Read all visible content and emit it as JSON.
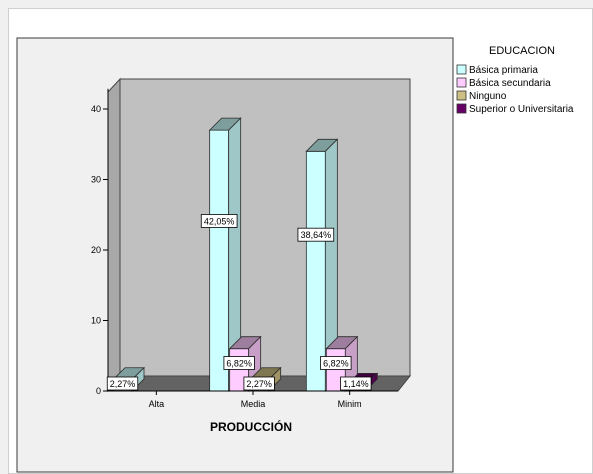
{
  "chart_data": {
    "type": "bar",
    "title": "",
    "xlabel": "PRODUCCIÓN",
    "ylabel": "",
    "ylim": [
      0,
      45
    ],
    "yticks": [
      0,
      10,
      20,
      30,
      40
    ],
    "grid": false,
    "legend_position": "right",
    "legend_title": "EDUCACION",
    "categories": [
      "Alta",
      "Media",
      "Minim"
    ],
    "series": [
      {
        "name": "Básica primaria",
        "color": "#ccffff",
        "values": [
          1.6,
          37,
          34
        ],
        "labels": [
          "2,27%",
          "42,05%",
          "38,64%"
        ]
      },
      {
        "name": "Básica secundaria",
        "color": "#ffccff",
        "values": [
          null,
          6,
          6
        ],
        "labels": [
          null,
          "6,82%",
          "6,82%"
        ]
      },
      {
        "name": "Ninguno",
        "color": "#cdbe84",
        "values": [
          null,
          1.6,
          null
        ],
        "labels": [
          null,
          "2,27%",
          null
        ]
      },
      {
        "name": "Superior o Universitaria",
        "color": "#660066",
        "values": [
          null,
          null,
          0.8
        ],
        "labels": [
          null,
          null,
          "1,14%"
        ]
      }
    ]
  }
}
